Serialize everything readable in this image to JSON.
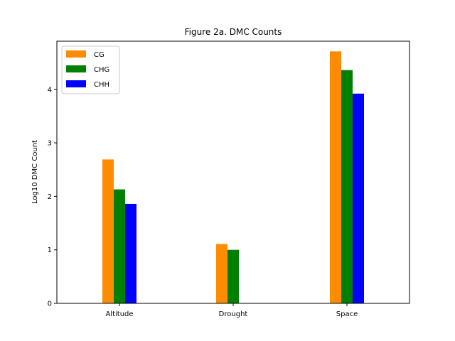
{
  "chart_data": {
    "type": "bar",
    "title": "Figure 2a. DMC Counts",
    "xlabel": "",
    "ylabel": "Log10 DMC Count",
    "categories": [
      "Altitude",
      "Drought",
      "Space"
    ],
    "series": [
      {
        "name": "CG",
        "color": "#ff8c00",
        "values": [
          2.69,
          1.11,
          4.71
        ]
      },
      {
        "name": "CHG",
        "color": "#008000",
        "values": [
          2.13,
          1.0,
          4.36
        ]
      },
      {
        "name": "CHH",
        "color": "#0000ff",
        "values": [
          1.86,
          null,
          3.92
        ]
      }
    ],
    "ylim": [
      0,
      4.9
    ],
    "yticks": [
      "0",
      "1",
      "2",
      "3",
      "4"
    ],
    "grid": false,
    "legend_position": "top-left"
  }
}
